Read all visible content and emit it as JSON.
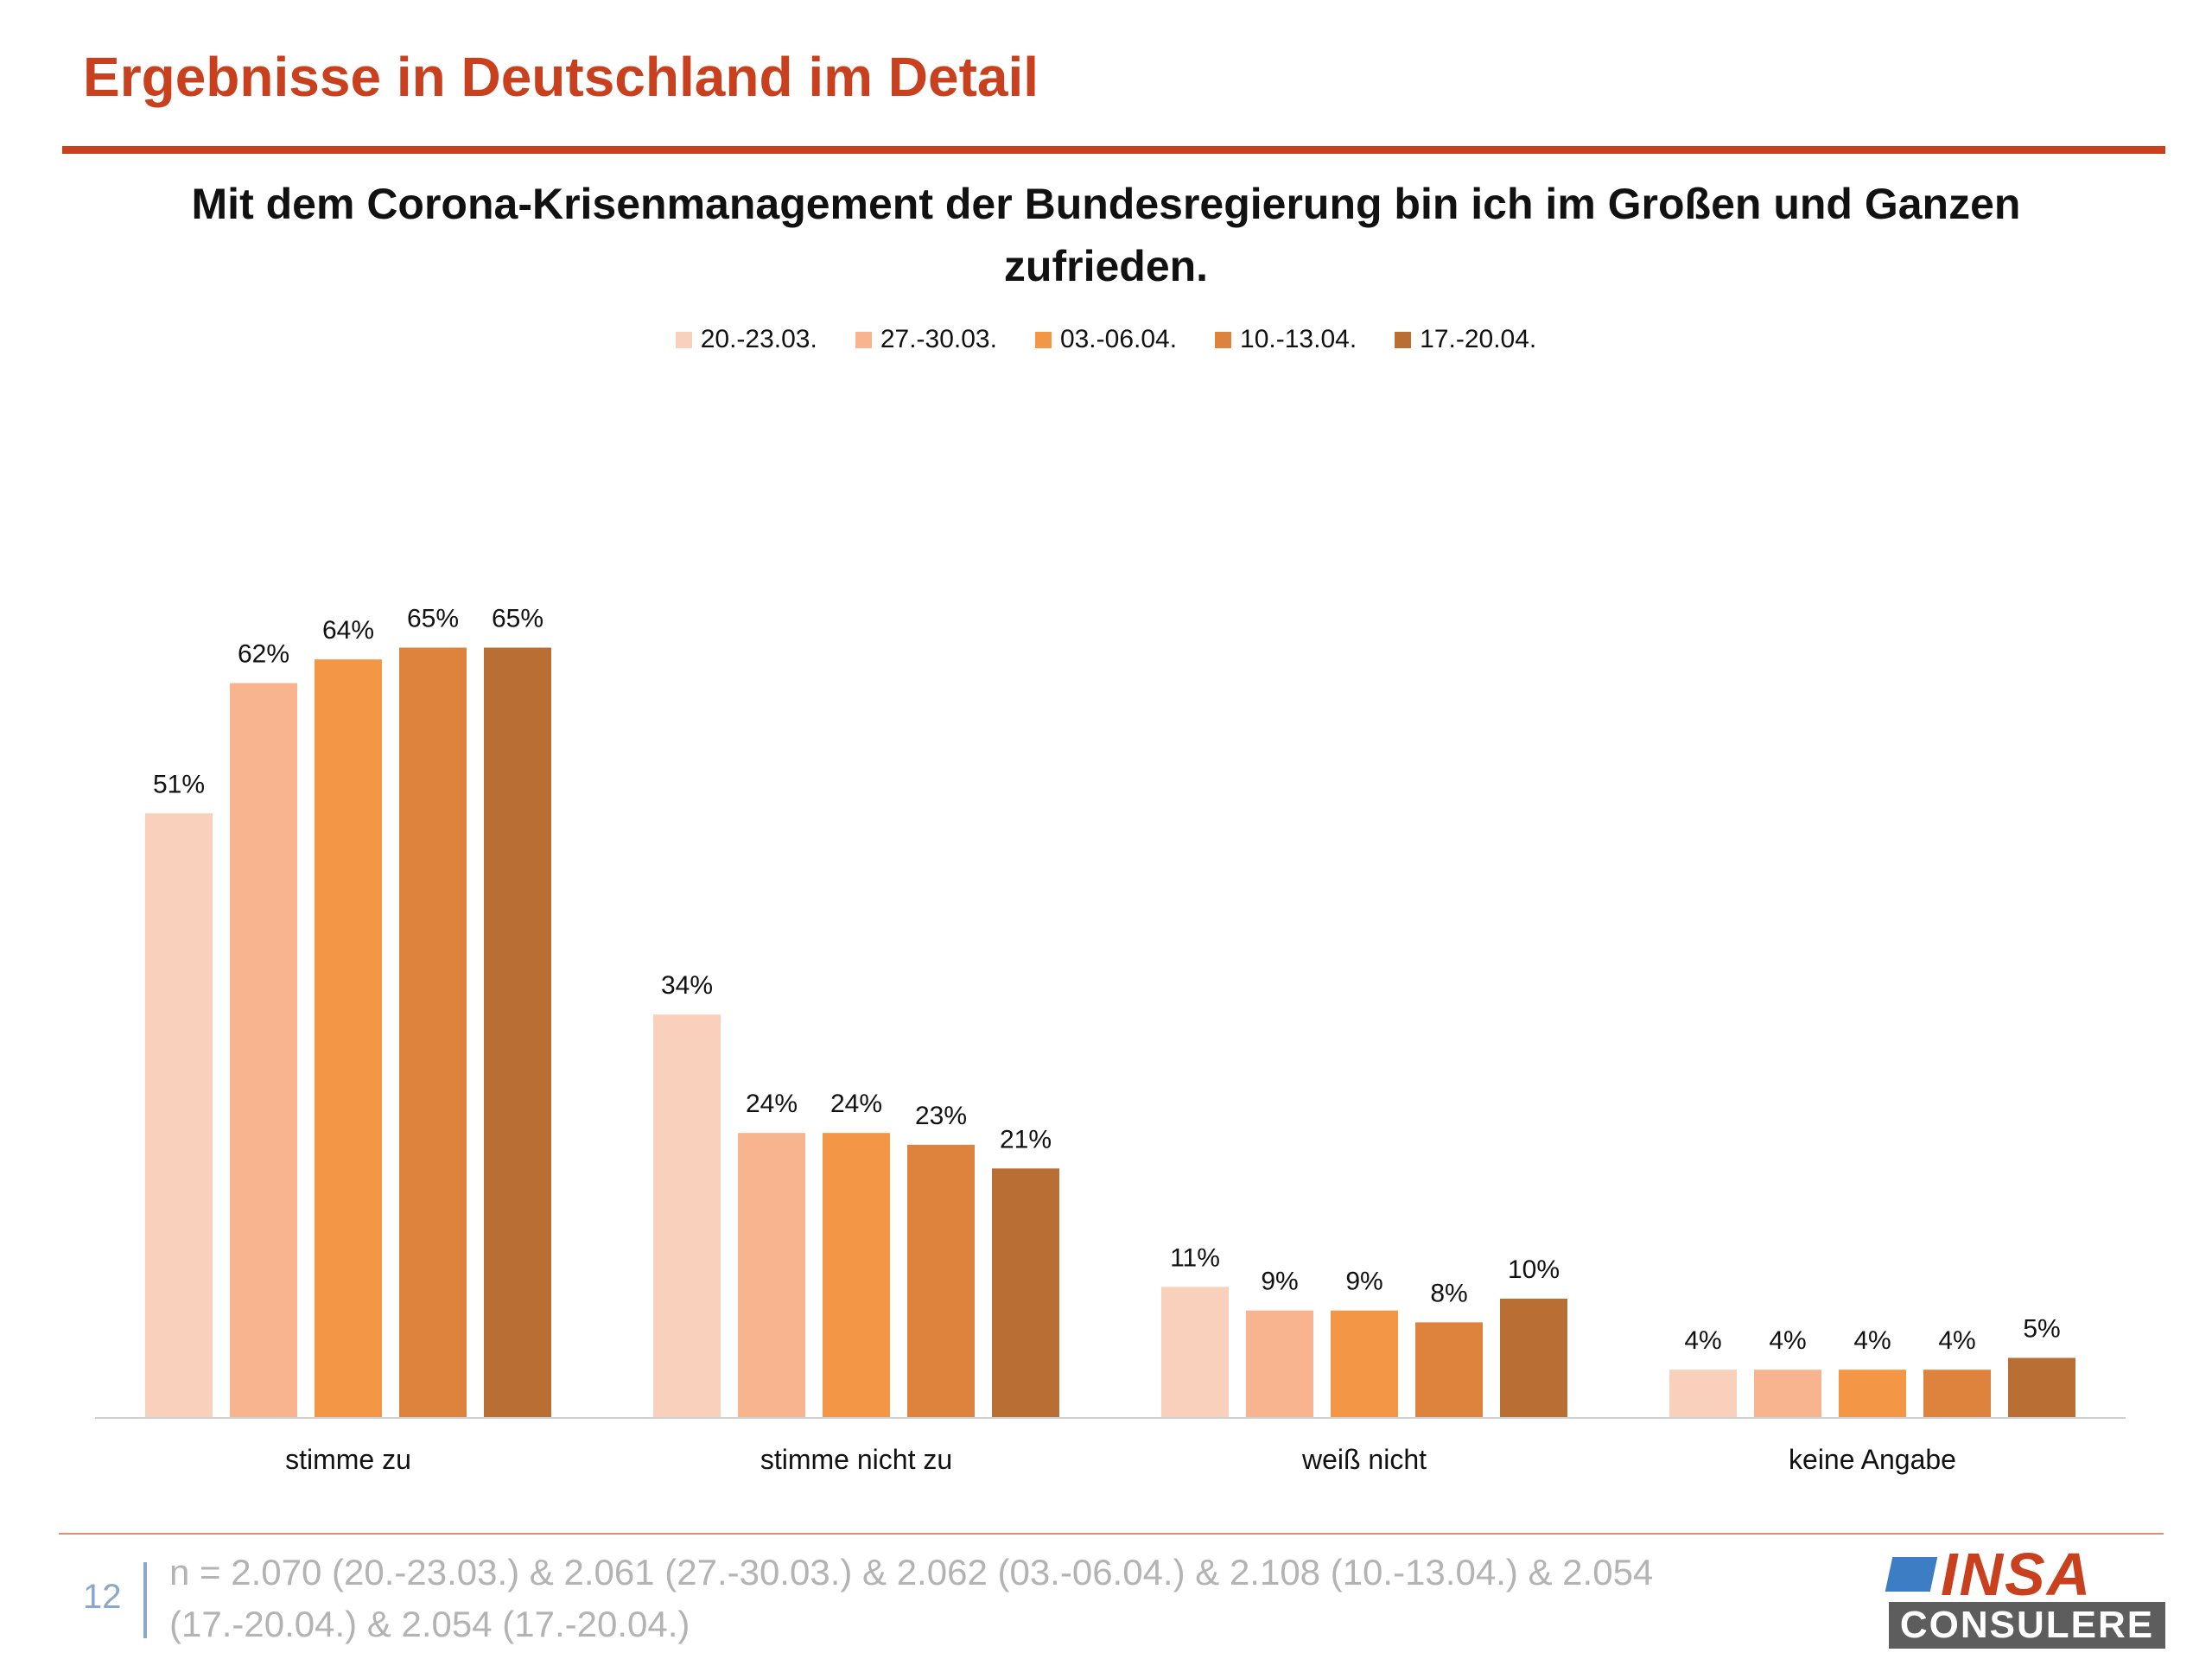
{
  "page": {
    "title": "Ergebnisse in Deutschland im Detail",
    "page_number": "12",
    "footnote": "n = 2.070 (20.-23.03.) & 2.061 (27.-30.03.) & 2.062 (03.-06.04.) & 2.108 (10.-13.04.) & 2.054 (17.-20.04.) & 2.054 (17.-20.04.)",
    "logo": {
      "top": "INSA",
      "bottom": "CONSULERE"
    }
  },
  "chart_data": {
    "type": "bar",
    "title": "Mit dem Corona-Krisenmanagement der Bundesregierung bin ich im Großen und Ganzen zufrieden.",
    "categories": [
      "stimme zu",
      "stimme nicht zu",
      "weiß nicht",
      "keine Angabe"
    ],
    "series": [
      {
        "name": "20.-23.03.",
        "color": "#f8d0bc",
        "values": [
          51,
          34,
          11,
          4
        ]
      },
      {
        "name": "27.-30.03.",
        "color": "#f7b48f",
        "values": [
          62,
          24,
          9,
          4
        ]
      },
      {
        "name": "03.-06.04.",
        "color": "#f39646",
        "values": [
          64,
          24,
          9,
          4
        ]
      },
      {
        "name": "10.-13.04.",
        "color": "#dd833e",
        "values": [
          65,
          23,
          8,
          4
        ]
      },
      {
        "name": "17.-20.04.",
        "color": "#b96e33",
        "values": [
          65,
          21,
          10,
          5
        ]
      }
    ],
    "value_suffix": "%",
    "legend_position": "top-center",
    "grid": false,
    "ylim": [
      0,
      70
    ]
  }
}
